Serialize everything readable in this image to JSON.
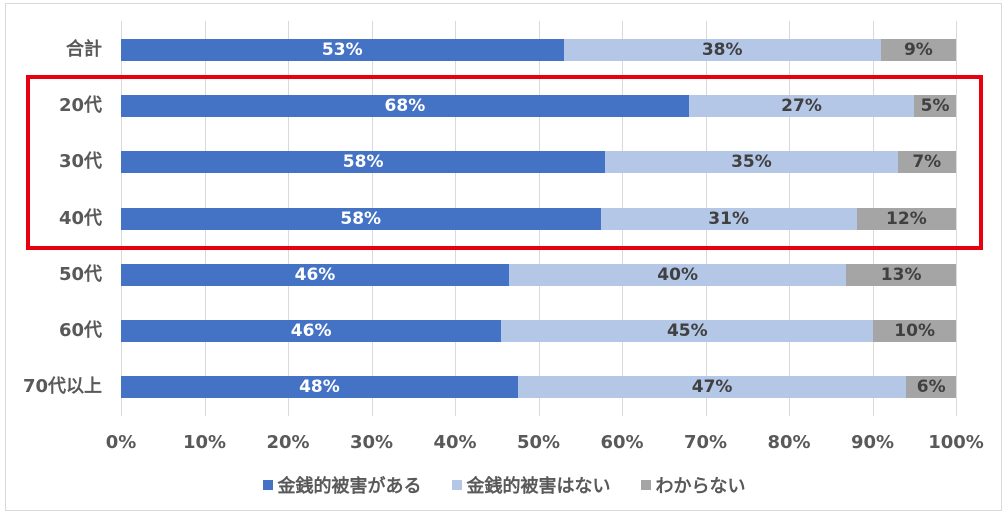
{
  "colors": {
    "series1": "#4472C4",
    "series2": "#B4C7E7",
    "series3": "#A5A5A5",
    "highlight": "#E8000E",
    "label_light": "#FFFFFF",
    "label_dark": "#404040"
  },
  "chart_data": {
    "type": "bar",
    "orientation": "horizontal",
    "stacked": "percent",
    "title": "",
    "xlabel": "",
    "ylabel": "",
    "xlim": [
      0,
      100
    ],
    "grid": true,
    "legend_position": "bottom",
    "categories": [
      "合計",
      "20代",
      "30代",
      "40代",
      "50代",
      "60代",
      "70代以上"
    ],
    "series": [
      {
        "name": "金銭的被害がある",
        "values": [
          53,
          68,
          58,
          58,
          46,
          46,
          48
        ]
      },
      {
        "name": "金銭的被害はない",
        "values": [
          38,
          27,
          35,
          31,
          40,
          45,
          47
        ]
      },
      {
        "name": "わからない",
        "values": [
          9,
          5,
          7,
          12,
          13,
          10,
          6
        ]
      }
    ],
    "x_ticks": [
      "0%",
      "10%",
      "20%",
      "30%",
      "40%",
      "50%",
      "60%",
      "70%",
      "80%",
      "90%",
      "100%"
    ],
    "annotations": [
      {
        "type": "highlight-box",
        "covers": [
          "20代",
          "30代",
          "40代"
        ],
        "color": "#E8000E"
      }
    ]
  },
  "rows": [
    {
      "label": "合計",
      "s1": "53%",
      "s2": "38%",
      "s3": "9%"
    },
    {
      "label": "20代",
      "s1": "68%",
      "s2": "27%",
      "s3": "5%"
    },
    {
      "label": "30代",
      "s1": "58%",
      "s2": "35%",
      "s3": "7%"
    },
    {
      "label": "40代",
      "s1": "58%",
      "s2": "31%",
      "s3": "12%"
    },
    {
      "label": "50代",
      "s1": "46%",
      "s2": "40%",
      "s3": "13%"
    },
    {
      "label": "60代",
      "s1": "46%",
      "s2": "45%",
      "s3": "10%"
    },
    {
      "label": "70代以上",
      "s1": "48%",
      "s2": "47%",
      "s3": "6%"
    }
  ],
  "legend": {
    "items": [
      "金銭的被害がある",
      "金銭的被害はない",
      "わからない"
    ]
  }
}
